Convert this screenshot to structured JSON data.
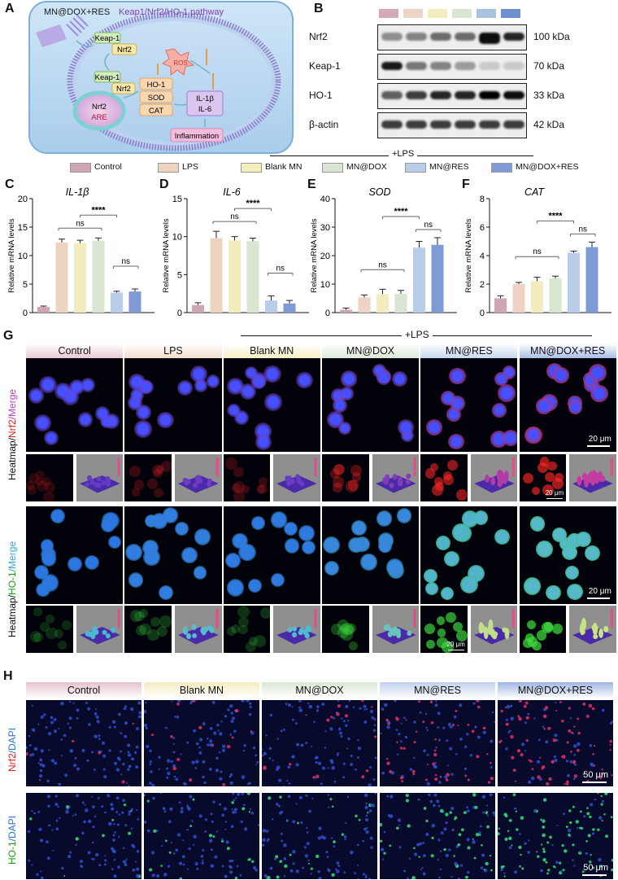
{
  "panels": {
    "A": "A",
    "B": "B",
    "C": "C",
    "D": "D",
    "E": "E",
    "F": "F",
    "G": "G",
    "H": "H"
  },
  "schematic": {
    "title": "Keap1/Nrf2/HO-1 pathway",
    "mn_label": "MN@DOX+RES",
    "nodes": {
      "keap1_a": "Keap-1",
      "nrf2_a": "Nrf2",
      "keap1_b": "Keap-1",
      "nrf2_b": "Nrf2",
      "ros": "ROS",
      "ho1": "HO-1",
      "sod": "SOD",
      "cat": "CAT",
      "il1b": "IL-1β",
      "il6": "IL-6",
      "nrf2_nuc": "Nrf2",
      "are": "ARE",
      "inflammation": "Inflammation"
    }
  },
  "blot": {
    "rows": [
      {
        "protein": "Nrf2",
        "kda": "100 kDa"
      },
      {
        "protein": "Keap-1",
        "kda": "70 kDa"
      },
      {
        "protein": "HO-1",
        "kda": "33 kDa"
      },
      {
        "protein": "β-actin",
        "kda": "42 kDa"
      }
    ],
    "lane_colors": [
      "#d6a9b8",
      "#eed4c4",
      "#f4eebf",
      "#d8e6d2",
      "#a9c2e0",
      "#6f8fd0"
    ]
  },
  "lps_label": "+LPS",
  "legend": [
    {
      "label": "Control",
      "color": "#cfa6b4"
    },
    {
      "label": "LPS",
      "color": "#eed3c2"
    },
    {
      "label": "Blank MN",
      "color": "#f3ecbd"
    },
    {
      "label": "MN@DOX",
      "color": "#d7e5d1"
    },
    {
      "label": "MN@RES",
      "color": "#b9cde8"
    },
    {
      "label": "MN@DOX+RES",
      "color": "#7f9bd6"
    }
  ],
  "chart_data": [
    {
      "type": "bar",
      "panel": "C",
      "title": "IL-1β",
      "ylabel": "Relative mRNA levels",
      "categories": [
        "Control",
        "LPS",
        "Blank MN",
        "MN@DOX",
        "MN@RES",
        "MN@DOX+RES"
      ],
      "values": [
        1.0,
        12.3,
        12.2,
        12.6,
        3.5,
        3.7
      ],
      "errors": [
        0.15,
        0.6,
        0.5,
        0.5,
        0.25,
        0.45
      ],
      "ylim": [
        0,
        20
      ],
      "yticks": [
        0,
        5,
        10,
        15,
        20
      ],
      "annotations": {
        "ns_left": "ns",
        "ns_right": "ns",
        "sig": "****"
      }
    },
    {
      "type": "bar",
      "panel": "D",
      "title": "IL-6",
      "ylabel": "Relative mRNA levels",
      "categories": [
        "Control",
        "LPS",
        "Blank MN",
        "MN@DOX",
        "MN@RES",
        "MN@DOX+RES"
      ],
      "values": [
        1.0,
        9.8,
        9.5,
        9.4,
        1.6,
        1.2
      ],
      "errors": [
        0.3,
        0.9,
        0.5,
        0.4,
        0.6,
        0.4
      ],
      "ylim": [
        0,
        15
      ],
      "yticks": [
        0,
        5,
        10,
        15
      ],
      "annotations": {
        "ns_left": "ns",
        "ns_right": "ns",
        "sig": "****"
      }
    },
    {
      "type": "bar",
      "panel": "E",
      "title": "SOD",
      "ylabel": "Relative mRNA levels",
      "categories": [
        "Control",
        "LPS",
        "Blank MN",
        "MN@DOX",
        "MN@RES",
        "MN@DOX+RES"
      ],
      "values": [
        1.0,
        5.3,
        6.5,
        6.6,
        22.8,
        23.8
      ],
      "errors": [
        0.6,
        0.9,
        1.7,
        1.2,
        2.2,
        2.5
      ],
      "ylim": [
        0,
        40
      ],
      "yticks": [
        0,
        10,
        20,
        30,
        40
      ],
      "annotations": {
        "ns_left": "ns",
        "ns_right": "ns",
        "sig": "****"
      }
    },
    {
      "type": "bar",
      "panel": "F",
      "title": "CAT",
      "ylabel": "Relative mRNA levels",
      "categories": [
        "Control",
        "LPS",
        "Blank MN",
        "MN@DOX",
        "MN@RES",
        "MN@DOX+RES"
      ],
      "values": [
        1.0,
        2.0,
        2.2,
        2.4,
        4.2,
        4.6
      ],
      "errors": [
        0.18,
        0.12,
        0.28,
        0.16,
        0.12,
        0.35
      ],
      "ylim": [
        0,
        8
      ],
      "yticks": [
        0,
        2,
        4,
        6,
        8
      ],
      "annotations": {
        "ns_left": "ns",
        "ns_right": "ns",
        "sig": "****"
      }
    }
  ],
  "panelG": {
    "columns": [
      "Control",
      "LPS",
      "Blank MN",
      "MN@DOX",
      "MN@RES",
      "MN@DOX+RES"
    ],
    "header_colors": [
      "#e9c9d2",
      "#f2dccd",
      "#f6efc6",
      "#dde9d8",
      "#c5d6ee",
      "#a8bde6"
    ],
    "row1_label_parts": [
      "Heatmap/",
      "Nrf2",
      "/Merge"
    ],
    "row2_label_parts": [
      "Heatmap/",
      "HO-1",
      "/Merge"
    ],
    "scalebar_big": "20 μm",
    "scalebar_small": "20 μm",
    "nrf2_intensity": [
      0.05,
      0.12,
      0.1,
      0.25,
      0.55,
      0.65
    ],
    "ho1_intensity": [
      0.08,
      0.15,
      0.12,
      0.25,
      0.7,
      0.75
    ]
  },
  "panelH": {
    "columns": [
      "Control",
      "Blank MN",
      "MN@DOX",
      "MN@RES",
      "MN@DOX+RES"
    ],
    "header_colors": [
      "#e6c2cc",
      "#f4ecc3",
      "#dbe7d6",
      "#bfd1ec",
      "#9fb5e2"
    ],
    "row1_label_parts": [
      "Nrf2",
      "/DAPI"
    ],
    "row2_label_parts": [
      "HO-1",
      "/DAPI"
    ],
    "scalebar": "50 μm"
  }
}
